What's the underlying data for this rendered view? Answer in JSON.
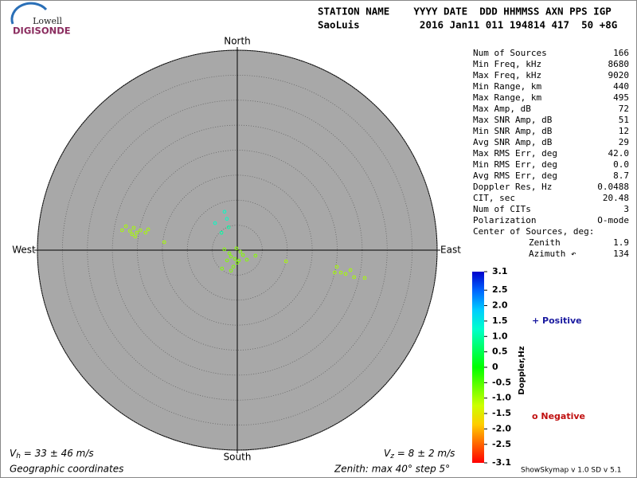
{
  "logo": {
    "line1": "Lowell",
    "line2": "DIGISONDE"
  },
  "header": {
    "row1": "STATION NAME    YYYY DATE  DDD HHMMSS AXN PPS IGP",
    "row2": "SaoLuis          2016 Jan11 011 194814 417  50 +8G"
  },
  "stats": [
    [
      "Num of Sources",
      "166"
    ],
    [
      "Min Freq, kHz",
      "8680"
    ],
    [
      "Max Freq, kHz",
      "9020"
    ],
    [
      "Min Range, km",
      "440"
    ],
    [
      "Max Range, km",
      "495"
    ],
    [
      "Max Amp, dB",
      "72"
    ],
    [
      "Max SNR Amp, dB",
      "51"
    ],
    [
      "Min SNR Amp, dB",
      "12"
    ],
    [
      "Avg SNR Amp, dB",
      "29"
    ],
    [
      "Max RMS Err, deg",
      "42.0"
    ],
    [
      "Min RMS Err, deg",
      "0.0"
    ],
    [
      "Avg RMS Err, deg",
      "8.7"
    ],
    [
      "Doppler Res, Hz",
      "0.0488"
    ],
    [
      "CIT, sec",
      "20.48"
    ],
    [
      "Num of CITs",
      "3"
    ],
    [
      "Polarization",
      "O-mode"
    ],
    [
      "Center of Sources, deg:",
      null
    ],
    [
      "Zenith",
      "1.9"
    ],
    [
      "Azimuth ↶",
      "134"
    ]
  ],
  "chart_data": {
    "type": "polar-scatter",
    "directions": {
      "north": "North",
      "south": "South",
      "east": "East",
      "west": "West"
    },
    "rlim": [
      0,
      40
    ],
    "rticks": [
      5,
      10,
      15,
      20,
      25,
      30,
      35,
      40
    ],
    "zenith": [
      23.4,
      22.8,
      21.8,
      21.2,
      20.4,
      20.6,
      19.8,
      18.7,
      18.3,
      14.7,
      21.3,
      1.8,
      1.8,
      2.1,
      1.7,
      2.5,
      3.4,
      2.9,
      1.5,
      2.6,
      0.7,
      4.3,
      2.7,
      0.4,
      4.8,
      10,
      3.8,
      20.2,
      21.2,
      22.2,
      23,
      24,
      26.1,
      20,
      8.1,
      6.6,
      4.9,
      7,
      4.7
    ],
    "azimuth": [
      279.8,
      282.1,
      280.1,
      282.2,
      279.9,
      277.6,
      281.6,
      280.8,
      283.1,
      276.2,
      278.6,
      225,
      195.3,
      171.3,
      248.2,
      180,
      193.4,
      225,
      130.6,
      273.6,
      116.6,
      197.1,
      135,
      333.4,
      219.6,
      102.9,
      106.9,
      99.5,
      102.2,
      102.4,
      100,
      103,
      102.3,
      102.9,
      341.6,
      341.6,
      339.2,
      320.5,
      317.7
    ],
    "doppler": [
      -1.0,
      -1.0,
      -1.0,
      -1.0,
      -1.0,
      -1.0,
      -1.0,
      -1.0,
      -1.0,
      -1.0,
      -1.0,
      -0.8,
      -0.8,
      -0.8,
      -0.8,
      -0.8,
      -0.8,
      -0.8,
      -0.8,
      -0.8,
      -0.8,
      -0.8,
      -0.8,
      -0.8,
      -0.8,
      -1.0,
      -0.8,
      -1.0,
      -1.0,
      -1.0,
      -1.0,
      -1.0,
      -1.0,
      -1.0,
      1.2,
      1.2,
      1.0,
      1.2,
      1.0
    ],
    "clim": [
      -3.1,
      3.1
    ],
    "cticks": [
      3.1,
      2.5,
      {
        "value": 2,
        "label": "2.0"
      },
      1.5,
      {
        "value": 1,
        "label": "1.0"
      },
      0.5,
      0,
      -0.5,
      {
        "value": -1,
        "label": "-1.0"
      },
      -1.5,
      {
        "value": -2,
        "label": "-2.0"
      },
      -2.5,
      -3.1
    ],
    "colorbar_label": "Doppler,Hz",
    "positive": "+ Positive",
    "negative": "o Negative"
  },
  "footer": {
    "vh_symbol": "V",
    "vh_sub": "h",
    "vh_text": " = 33 ± 46 m/s",
    "vz_symbol": "V",
    "vz_sub": "z",
    "vz_text": " = 8 ± 2 m/s",
    "coords": "Geographic coordinates",
    "zenith": "Zenith: max 40°  step 5°",
    "version": "ShowSkymap v 1.0  SD v 5.1"
  }
}
